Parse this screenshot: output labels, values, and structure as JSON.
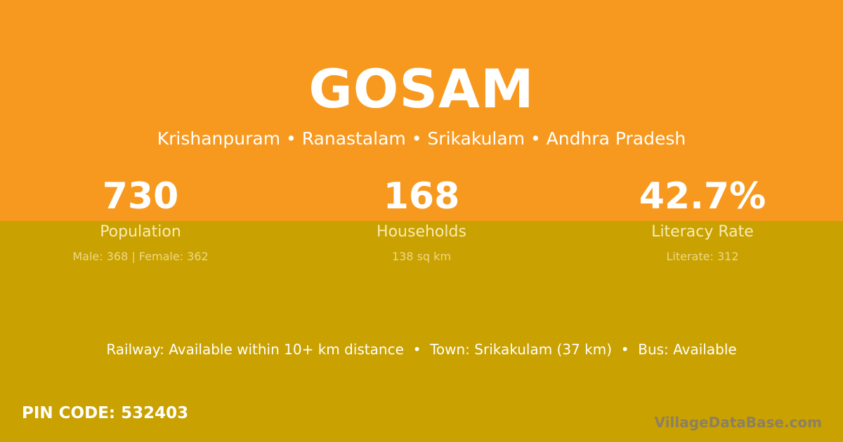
{
  "colors": {
    "top_background": "#F8991F",
    "bottom_background": "#C9A100",
    "logo": "#8C8060"
  },
  "village": {
    "name": "GOSAM",
    "location": "Krishanpuram • Ranastalam • Srikakulam • Andhra Pradesh"
  },
  "stats": [
    {
      "value": "730",
      "label": "Population",
      "detail": "Male: 368 | Female: 362"
    },
    {
      "value": "168",
      "label": "Households",
      "detail": "138 sq km"
    },
    {
      "value": "42.7%",
      "label": "Literacy Rate",
      "detail": "Literate: 312"
    }
  ],
  "connectivity": "Railway: Available within 10+ km distance  •  Town: Srikakulam (37 km)  •  Bus: Available",
  "pin_code": "PIN CODE: 532403",
  "brand": "VillageDataBase.com"
}
